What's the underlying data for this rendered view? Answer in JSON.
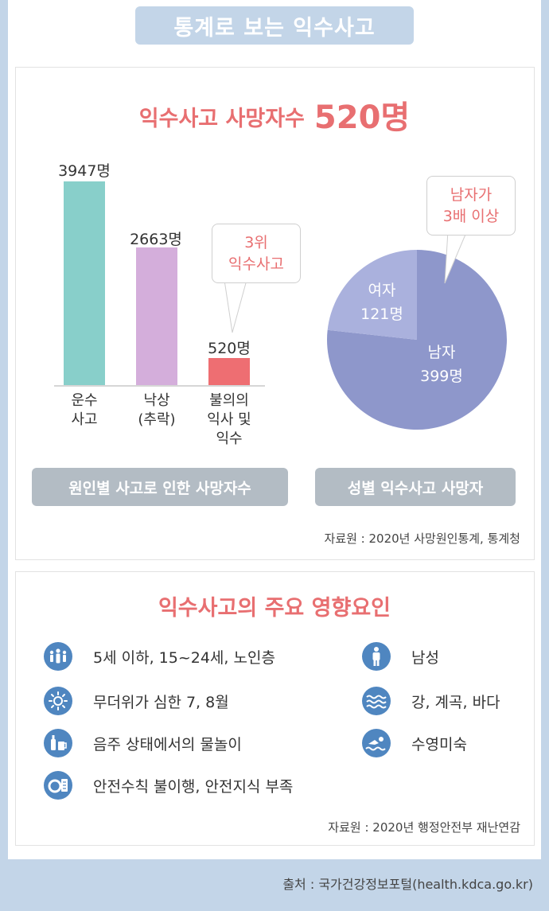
{
  "header": {
    "title": "통계로 보는 익수사고"
  },
  "section1": {
    "title_prefix": "익수사고 사망자수",
    "title_highlight": "520명",
    "bar_chart": {
      "labels": [
        "3947명",
        "2663명",
        "520명"
      ],
      "categories": [
        [
          "운수",
          "사고"
        ],
        [
          "낙상",
          "(추락)"
        ],
        [
          "불의의",
          "익사 및",
          "익수"
        ]
      ],
      "callout": [
        "3위",
        "익수사고"
      ],
      "caption": "원인별 사고로 인한 사망자수"
    },
    "pie_chart": {
      "female_label": [
        "여자",
        "121명"
      ],
      "male_label": [
        "남자",
        "399명"
      ],
      "callout": [
        "남자가",
        "3배 이상"
      ],
      "caption": "성별 익수사고 사망자"
    },
    "source": "자료원 : 2020년 사망원인통계, 통계청"
  },
  "chart_data": [
    {
      "type": "bar",
      "title": "원인별 사고로 인한 사망자수",
      "categories": [
        "운수 사고",
        "낙상 (추락)",
        "불의의 익사 및 익수"
      ],
      "values": [
        3947,
        2663,
        520
      ],
      "unit": "명",
      "colors": [
        "#88cfca",
        "#d4aedb",
        "#ee6e72"
      ]
    },
    {
      "type": "pie",
      "title": "성별 익수사고 사망자",
      "categories": [
        "남자",
        "여자"
      ],
      "values": [
        399,
        121
      ],
      "unit": "명",
      "colors": [
        "#8e97cb",
        "#aab1dd"
      ]
    }
  ],
  "section2": {
    "title_prefix": "익수사고의 주요 ",
    "title_highlight": "영향요인",
    "factors_left": [
      {
        "icon": "people-icon",
        "text": "5세 이하, 15~24세, 노인층"
      },
      {
        "icon": "sun-icon",
        "text": "무더위가 심한 7, 8월"
      },
      {
        "icon": "drinks-icon",
        "text": "음주 상태에서의 물놀이"
      },
      {
        "icon": "lifebuoy-icon",
        "text": "안전수칙 불이행, 안전지식 부족"
      }
    ],
    "factors_right": [
      {
        "icon": "man-icon",
        "text": "남성"
      },
      {
        "icon": "waves-icon",
        "text": "강, 계곡, 바다"
      },
      {
        "icon": "swimmer-icon",
        "text": "수영미숙"
      }
    ],
    "source": "자료원 : 2020년 행정안전부 재난연감"
  },
  "footer": {
    "text": "출처 : 국가건강정보포털(health.kdca.go.kr)"
  },
  "colors": {
    "accent": "#e86f71",
    "icon_bg": "#4f86c0",
    "pill_bg": "#b3bcc4",
    "page_bg": "#c3d5e8"
  }
}
